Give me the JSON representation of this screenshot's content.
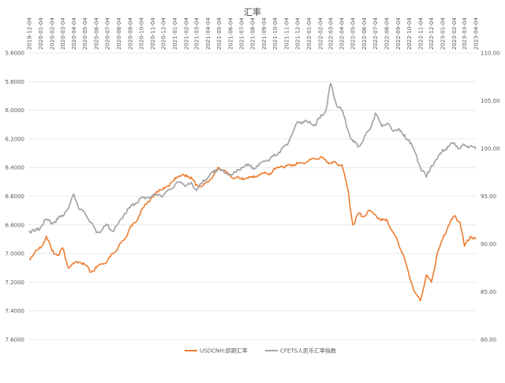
{
  "chart_data": {
    "type": "line",
    "title": "汇率",
    "x_tick_labels": [
      "2019-12-04",
      "2020-01-04",
      "2020-02-04",
      "2020-03-04",
      "2020-04-04",
      "2020-05-04",
      "2020-06-04",
      "2020-07-04",
      "2020-08-04",
      "2020-09-04",
      "2020-10-04",
      "2020-11-04",
      "2020-12-04",
      "2021-01-04",
      "2021-02-04",
      "2021-03-04",
      "2021-04-04",
      "2021-05-04",
      "2021-06-04",
      "2021-07-04",
      "2021-08-04",
      "2021-09-04",
      "2021-10-04",
      "2021-11-04",
      "2021-12-04",
      "2022-01-04",
      "2022-02-04",
      "2022-03-04",
      "2022-04-04",
      "2022-05-04",
      "2022-06-04",
      "2022-07-04",
      "2022-08-04",
      "2022-09-04",
      "2022-10-04",
      "2022-11-04",
      "2022-12-04",
      "2023-01-04",
      "2023-02-04",
      "2023-03-04",
      "2023-04-04"
    ],
    "y_left": {
      "ylim": [
        5.6,
        7.6
      ],
      "ticks": [
        5.6,
        5.8,
        6.0,
        6.2,
        6.4,
        6.6,
        6.8,
        7.0,
        7.2,
        7.4,
        7.6
      ],
      "tick_labels": [
        "5.6000",
        "5.8000",
        "6.0000",
        "6.2000",
        "6.4000",
        "6.6000",
        "6.8000",
        "7.0000",
        "7.2000",
        "7.4000",
        "7.6000"
      ],
      "inverted": true
    },
    "y_right": {
      "ylim": [
        80,
        110
      ],
      "ticks": [
        80,
        85,
        90,
        95,
        100,
        105,
        110
      ],
      "tick_labels": [
        "80.00",
        "85.00",
        "90.00",
        "95.00",
        "100.00",
        "105.00",
        "110.00"
      ]
    },
    "legend_position": "bottom",
    "series": [
      {
        "name": "USDCNH:即期汇率",
        "axis": "left",
        "color": "#ed7d31",
        "points": [
          [
            "2019-12-04",
            7.04
          ],
          [
            "2019-12-20",
            6.99
          ],
          [
            "2020-01-04",
            6.96
          ],
          [
            "2020-01-20",
            6.88
          ],
          [
            "2020-02-04",
            6.98
          ],
          [
            "2020-02-20",
            7.01
          ],
          [
            "2020-03-04",
            6.96
          ],
          [
            "2020-03-20",
            7.1
          ],
          [
            "2020-04-04",
            7.07
          ],
          [
            "2020-04-20",
            7.06
          ],
          [
            "2020-05-04",
            7.08
          ],
          [
            "2020-05-20",
            7.13
          ],
          [
            "2020-06-04",
            7.1
          ],
          [
            "2020-06-20",
            7.07
          ],
          [
            "2020-07-04",
            7.05
          ],
          [
            "2020-07-20",
            7.0
          ],
          [
            "2020-08-04",
            6.95
          ],
          [
            "2020-08-20",
            6.9
          ],
          [
            "2020-09-04",
            6.82
          ],
          [
            "2020-09-20",
            6.78
          ],
          [
            "2020-10-04",
            6.7
          ],
          [
            "2020-10-20",
            6.65
          ],
          [
            "2020-11-04",
            6.6
          ],
          [
            "2020-11-20",
            6.57
          ],
          [
            "2020-12-04",
            6.54
          ],
          [
            "2020-12-20",
            6.53
          ],
          [
            "2021-01-04",
            6.47
          ],
          [
            "2021-01-20",
            6.46
          ],
          [
            "2021-02-04",
            6.45
          ],
          [
            "2021-02-20",
            6.48
          ],
          [
            "2021-03-04",
            6.52
          ],
          [
            "2021-03-20",
            6.53
          ],
          [
            "2021-04-04",
            6.5
          ],
          [
            "2021-04-20",
            6.45
          ],
          [
            "2021-05-04",
            6.4
          ],
          [
            "2021-05-20",
            6.42
          ],
          [
            "2021-06-04",
            6.46
          ],
          [
            "2021-06-20",
            6.47
          ],
          [
            "2021-07-04",
            6.48
          ],
          [
            "2021-07-20",
            6.47
          ],
          [
            "2021-08-04",
            6.47
          ],
          [
            "2021-08-20",
            6.45
          ],
          [
            "2021-09-04",
            6.44
          ],
          [
            "2021-09-20",
            6.44
          ],
          [
            "2021-10-04",
            6.41
          ],
          [
            "2021-10-20",
            6.39
          ],
          [
            "2021-11-04",
            6.39
          ],
          [
            "2021-11-20",
            6.38
          ],
          [
            "2021-12-04",
            6.37
          ],
          [
            "2021-12-20",
            6.37
          ],
          [
            "2022-01-04",
            6.35
          ],
          [
            "2022-01-20",
            6.34
          ],
          [
            "2022-02-04",
            6.33
          ],
          [
            "2022-02-20",
            6.35
          ],
          [
            "2022-03-04",
            6.37
          ],
          [
            "2022-03-20",
            6.37
          ],
          [
            "2022-04-04",
            6.38
          ],
          [
            "2022-04-20",
            6.55
          ],
          [
            "2022-05-04",
            6.8
          ],
          [
            "2022-05-20",
            6.72
          ],
          [
            "2022-06-04",
            6.74
          ],
          [
            "2022-06-20",
            6.7
          ],
          [
            "2022-07-04",
            6.73
          ],
          [
            "2022-07-20",
            6.77
          ],
          [
            "2022-08-04",
            6.76
          ],
          [
            "2022-08-20",
            6.85
          ],
          [
            "2022-09-04",
            6.92
          ],
          [
            "2022-09-20",
            7.02
          ],
          [
            "2022-10-04",
            7.15
          ],
          [
            "2022-10-20",
            7.27
          ],
          [
            "2022-11-04",
            7.33
          ],
          [
            "2022-11-20",
            7.15
          ],
          [
            "2022-12-04",
            7.2
          ],
          [
            "2022-12-20",
            7.0
          ],
          [
            "2023-01-04",
            6.9
          ],
          [
            "2023-01-20",
            6.8
          ],
          [
            "2023-02-04",
            6.74
          ],
          [
            "2023-02-20",
            6.78
          ],
          [
            "2023-03-04",
            6.95
          ],
          [
            "2023-03-20",
            6.88
          ],
          [
            "2023-04-04",
            6.9
          ]
        ]
      },
      {
        "name": "CFETS人民币汇率指数",
        "axis": "right",
        "color": "#a5a5a5",
        "points": [
          [
            "2019-12-04",
            91.4
          ],
          [
            "2019-12-20",
            91.3
          ],
          [
            "2020-01-04",
            91.8
          ],
          [
            "2020-01-20",
            92.6
          ],
          [
            "2020-02-04",
            92.2
          ],
          [
            "2020-02-20",
            92.6
          ],
          [
            "2020-03-04",
            93.0
          ],
          [
            "2020-03-20",
            93.8
          ],
          [
            "2020-04-04",
            95.2
          ],
          [
            "2020-04-20",
            93.6
          ],
          [
            "2020-05-04",
            93.2
          ],
          [
            "2020-05-20",
            92.3
          ],
          [
            "2020-06-04",
            91.2
          ],
          [
            "2020-06-20",
            91.5
          ],
          [
            "2020-07-04",
            92.0
          ],
          [
            "2020-07-20",
            91.3
          ],
          [
            "2020-08-04",
            92.2
          ],
          [
            "2020-08-20",
            93.2
          ],
          [
            "2020-09-04",
            93.8
          ],
          [
            "2020-09-20",
            94.3
          ],
          [
            "2020-10-04",
            94.8
          ],
          [
            "2020-10-20",
            94.9
          ],
          [
            "2020-11-04",
            95.0
          ],
          [
            "2020-11-20",
            95.2
          ],
          [
            "2020-12-04",
            95.1
          ],
          [
            "2020-12-20",
            95.7
          ],
          [
            "2021-01-04",
            96.2
          ],
          [
            "2021-01-20",
            96.5
          ],
          [
            "2021-02-04",
            96.1
          ],
          [
            "2021-02-20",
            96.3
          ],
          [
            "2021-03-04",
            95.6
          ],
          [
            "2021-03-20",
            96.4
          ],
          [
            "2021-04-04",
            97.0
          ],
          [
            "2021-04-20",
            97.5
          ],
          [
            "2021-05-04",
            97.9
          ],
          [
            "2021-05-20",
            97.4
          ],
          [
            "2021-06-04",
            97.3
          ],
          [
            "2021-06-20",
            97.5
          ],
          [
            "2021-07-04",
            98.0
          ],
          [
            "2021-07-20",
            98.2
          ],
          [
            "2021-08-04",
            98.0
          ],
          [
            "2021-08-20",
            98.2
          ],
          [
            "2021-09-04",
            98.7
          ],
          [
            "2021-09-20",
            98.9
          ],
          [
            "2021-10-04",
            99.3
          ],
          [
            "2021-10-20",
            99.8
          ],
          [
            "2021-11-04",
            100.4
          ],
          [
            "2021-11-20",
            101.5
          ],
          [
            "2021-12-04",
            102.8
          ],
          [
            "2021-12-20",
            102.8
          ],
          [
            "2022-01-04",
            102.7
          ],
          [
            "2022-01-20",
            102.5
          ],
          [
            "2022-02-04",
            103.2
          ],
          [
            "2022-02-20",
            104.0
          ],
          [
            "2022-03-04",
            106.8
          ],
          [
            "2022-03-20",
            104.6
          ],
          [
            "2022-04-04",
            104.0
          ],
          [
            "2022-04-20",
            102.0
          ],
          [
            "2022-05-04",
            100.7
          ],
          [
            "2022-05-20",
            100.2
          ],
          [
            "2022-06-04",
            101.2
          ],
          [
            "2022-06-20",
            102.0
          ],
          [
            "2022-07-04",
            103.7
          ],
          [
            "2022-07-20",
            102.5
          ],
          [
            "2022-08-04",
            102.6
          ],
          [
            "2022-08-20",
            101.9
          ],
          [
            "2022-09-04",
            102.0
          ],
          [
            "2022-09-20",
            101.3
          ],
          [
            "2022-10-04",
            100.9
          ],
          [
            "2022-10-20",
            99.6
          ],
          [
            "2022-11-04",
            98.0
          ],
          [
            "2022-11-20",
            97.0
          ],
          [
            "2022-12-04",
            98.2
          ],
          [
            "2022-12-20",
            98.9
          ],
          [
            "2023-01-04",
            99.9
          ],
          [
            "2023-01-20",
            100.2
          ],
          [
            "2023-02-04",
            100.6
          ],
          [
            "2023-02-20",
            100.0
          ],
          [
            "2023-03-04",
            100.4
          ],
          [
            "2023-03-20",
            100.2
          ],
          [
            "2023-04-04",
            99.9
          ]
        ]
      }
    ]
  }
}
